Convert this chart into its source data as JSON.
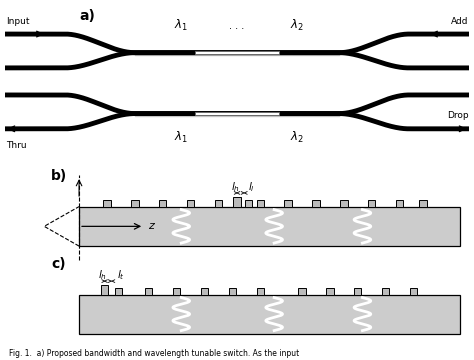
{
  "fig_width": 4.74,
  "fig_height": 3.6,
  "dpi": 100,
  "bg_color": "#ffffff",
  "black": "#000000",
  "dark_gray": "#666666",
  "light_gray": "#cccccc",
  "panel_a_label": "a)",
  "panel_b_label": "b)",
  "panel_c_label": "c)",
  "input_label": "Input",
  "thru_label": "Thru",
  "add_label": "Add",
  "drop_label": "Drop",
  "caption": "Fig. 1.  a) Proposed bandwidth and wavelength tunable switch. As the input",
  "lw_wg": 3.5,
  "slab_facecolor": "#cccccc",
  "tooth_facecolor": "#bbbbbb"
}
